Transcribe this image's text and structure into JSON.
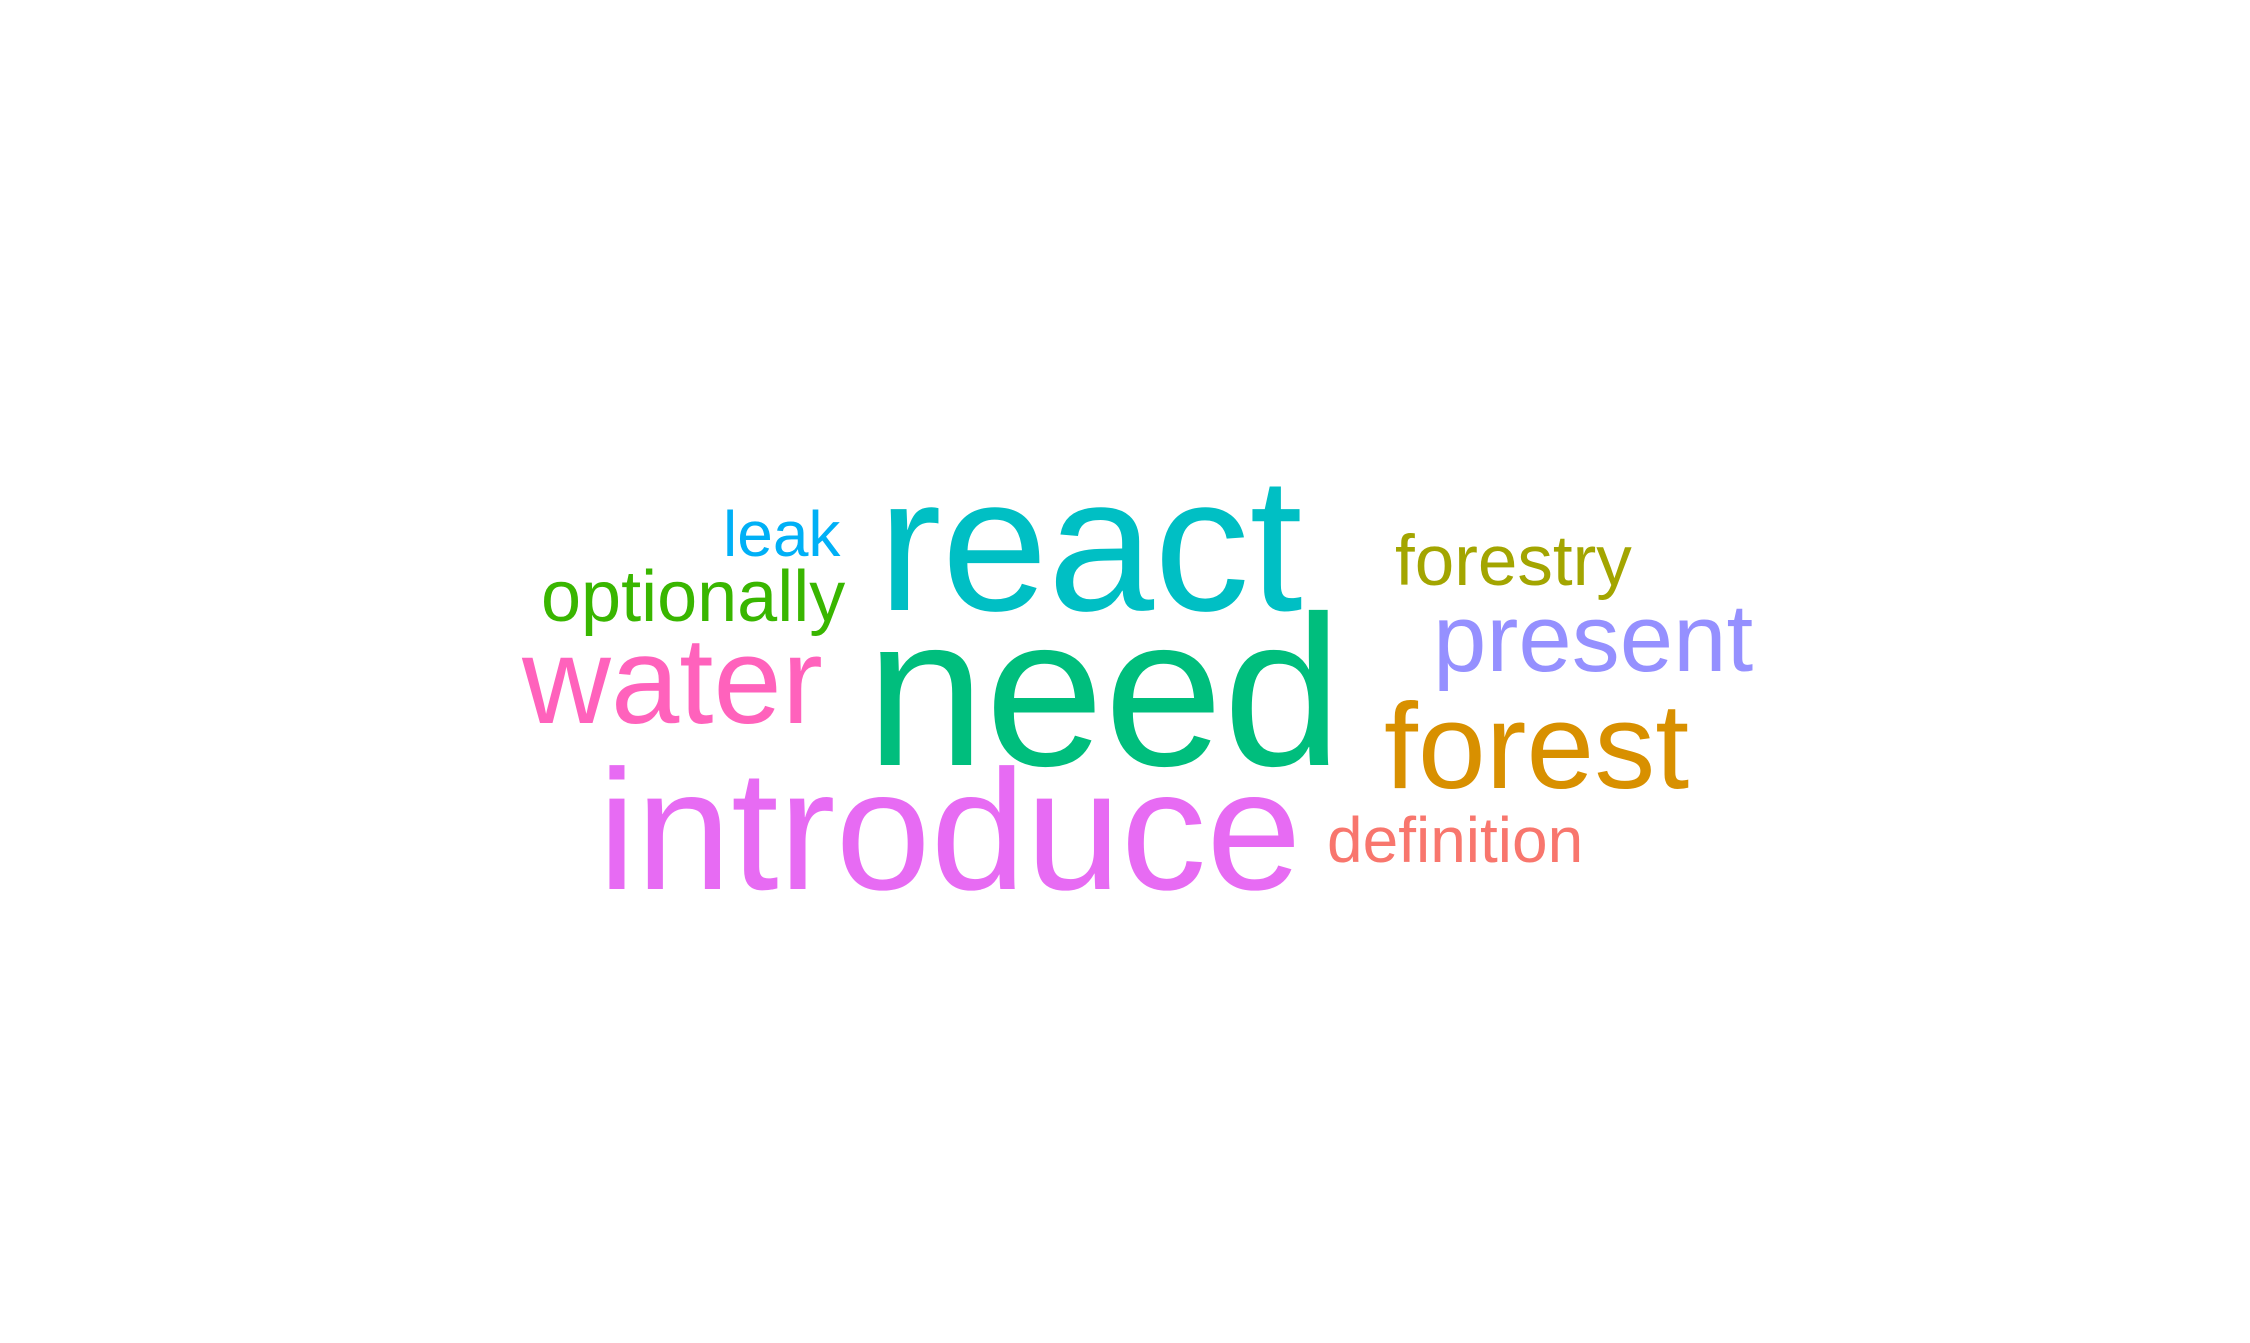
{
  "words": [
    {
      "key": "react",
      "text": "react",
      "color": "#00bfc4"
    },
    {
      "key": "need",
      "text": "need",
      "color": "#00be7d"
    },
    {
      "key": "introduce",
      "text": "introduce",
      "color": "#e76bf3"
    },
    {
      "key": "water",
      "text": "water",
      "color": "#ff62bc"
    },
    {
      "key": "forest",
      "text": "forest",
      "color": "#d89000"
    },
    {
      "key": "present",
      "text": "present",
      "color": "#9590ff"
    },
    {
      "key": "forestry",
      "text": "forestry",
      "color": "#a3a500"
    },
    {
      "key": "optionally",
      "text": "optionally",
      "color": "#39b600"
    },
    {
      "key": "leak",
      "text": "leak",
      "color": "#00b0f6"
    },
    {
      "key": "definition",
      "text": "definition",
      "color": "#f8766d"
    }
  ]
}
